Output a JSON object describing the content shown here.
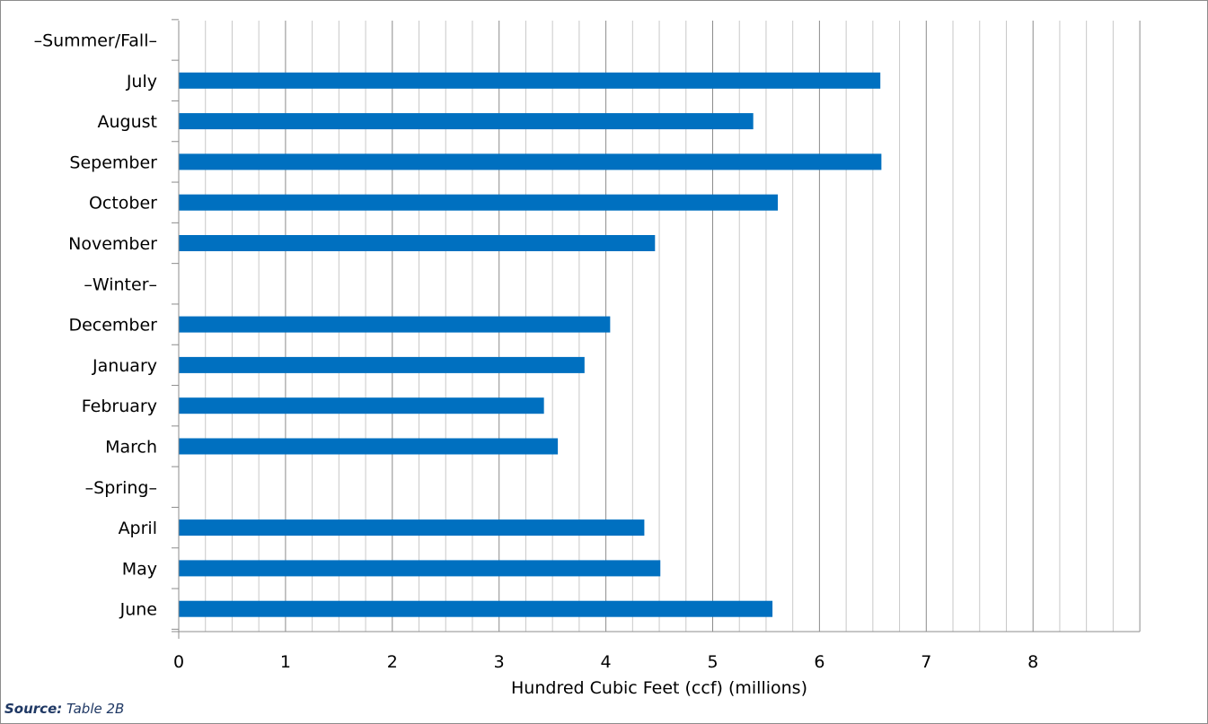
{
  "chart_data": {
    "type": "bar",
    "orientation": "horizontal",
    "categories": [
      "–Summer/Fall–",
      "July",
      "August",
      "Sepember",
      "October",
      "November",
      "–Winter–",
      "December",
      "January",
      "February",
      "March",
      "–Spring–",
      "April",
      "May",
      "June"
    ],
    "values": [
      null,
      6.57,
      5.38,
      6.58,
      5.61,
      4.46,
      null,
      4.04,
      3.8,
      3.42,
      3.55,
      null,
      4.36,
      4.51,
      5.56
    ],
    "xlabel": "Hundred Cubic Feet (ccf) (millions)",
    "ylabel": "",
    "xlim": [
      0,
      9
    ],
    "xticks": [
      "0",
      "1",
      "2",
      "3",
      "4",
      "5",
      "6",
      "7",
      "8"
    ],
    "grid": "vertical major and minor",
    "bar_color": "#0070c0"
  },
  "source_note": {
    "label": "Source:",
    "text": "Table 2B"
  }
}
